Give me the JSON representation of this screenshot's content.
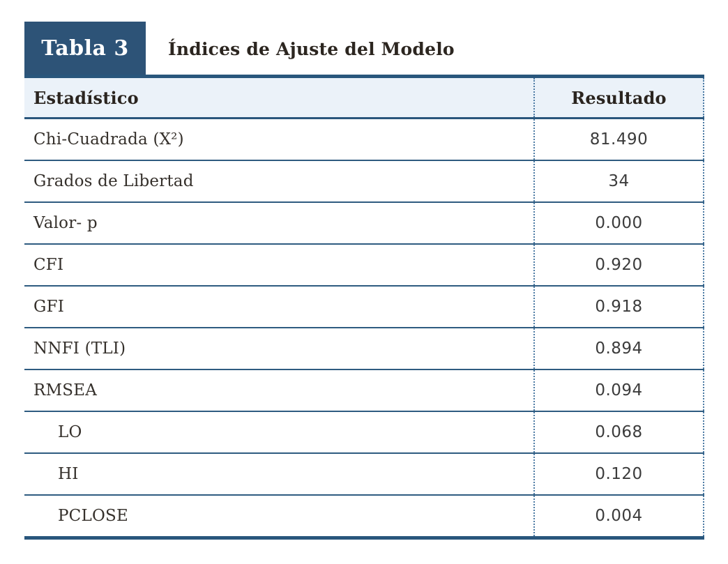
{
  "header": {
    "tab_label": "Tabla 3",
    "title": "Índices de Ajuste del Modelo"
  },
  "colors": {
    "accent_blue": "#2d5377",
    "border_blue": "#29567c",
    "header_row_bg": "#ebf2f9",
    "dotted_divider": "#4d7ba4",
    "text_dark": "#35302b"
  },
  "table": {
    "columns": [
      "Estadístico",
      "Resultado"
    ],
    "rows": [
      {
        "label": "Chi-Cuadrada (X²)",
        "value": "81.490"
      },
      {
        "label": "Grados de Libertad",
        "value": "34"
      },
      {
        "label": "Valor- p",
        "value": "0.000"
      },
      {
        "label": "CFI",
        "value": "0.920"
      },
      {
        "label": "GFI",
        "value": "0.918"
      },
      {
        "label": "NNFI (TLI)",
        "value": "0.894"
      },
      {
        "label": "RMSEA",
        "value": "0.094"
      },
      {
        "label": "LO",
        "value": "0.068"
      },
      {
        "label": "HI",
        "value": "0.120"
      },
      {
        "label": "PCLOSE",
        "value": "0.004"
      }
    ]
  },
  "chart_data": {
    "type": "table",
    "title": "Índices de Ajuste del Modelo",
    "columns": [
      "Estadístico",
      "Resultado"
    ],
    "rows": [
      [
        "Chi-Cuadrada (X²)",
        81.49
      ],
      [
        "Grados de Libertad",
        34
      ],
      [
        "Valor- p",
        0.0
      ],
      [
        "CFI",
        0.92
      ],
      [
        "GFI",
        0.918
      ],
      [
        "NNFI (TLI)",
        0.894
      ],
      [
        "RMSEA",
        0.094
      ],
      [
        "LO",
        0.068
      ],
      [
        "HI",
        0.12
      ],
      [
        "PCLOSE",
        0.004
      ]
    ]
  }
}
